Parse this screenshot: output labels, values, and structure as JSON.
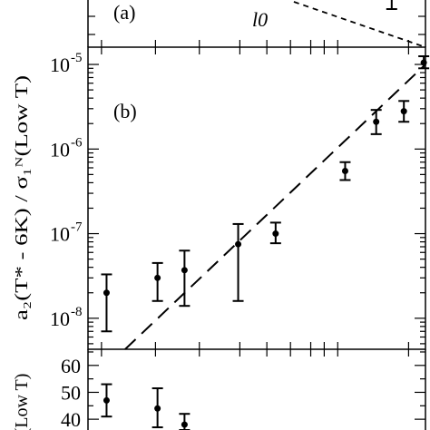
{
  "chart_data": [
    {
      "type": "line",
      "panel_label": "(a)",
      "annotation": "l0",
      "series": [
        {
          "style": "dashed",
          "x": [
            0.7,
            1.0
          ],
          "y": [
            1.0,
            0.0
          ]
        }
      ],
      "error_points": [
        {
          "x": 0.95,
          "y": 1.05
        }
      ]
    },
    {
      "type": "scatter",
      "panel_label": "(b)",
      "ylabel": "a₂(T* - 6K) / σ₁ᴺ(Low T)",
      "yscale": "log",
      "ylim": [
        4.3e-09,
        1.6e-05
      ],
      "xlim": [
        0,
        1
      ],
      "yticks": [
        {
          "value": 1e-08,
          "label": "10",
          "exp": "-8"
        },
        {
          "value": 1e-07,
          "label": "10",
          "exp": "-7"
        },
        {
          "value": 1e-06,
          "label": "10",
          "exp": "-6"
        },
        {
          "value": 1e-05,
          "label": "10",
          "exp": "-5"
        }
      ],
      "points": [
        {
          "x": 0.055,
          "y": 2e-08,
          "ylo": 7e-09,
          "yhi": 3.3e-08
        },
        {
          "x": 0.206,
          "y": 3e-08,
          "ylo": 1.6e-08,
          "yhi": 4.5e-08
        },
        {
          "x": 0.286,
          "y": 3.7e-08,
          "ylo": 1.4e-08,
          "yhi": 6.3e-08
        },
        {
          "x": 0.445,
          "y": 7.5e-08,
          "ylo": 1.6e-08,
          "yhi": 1.3e-07
        },
        {
          "x": 0.556,
          "y": 1e-07,
          "ylo": 7.7e-08,
          "yhi": 1.35e-07
        },
        {
          "x": 0.762,
          "y": 5.5e-07,
          "ylo": 4.3e-07,
          "yhi": 7e-07
        },
        {
          "x": 0.854,
          "y": 2.1e-06,
          "ylo": 1.5e-06,
          "yhi": 2.9e-06
        },
        {
          "x": 0.936,
          "y": 2.8e-06,
          "ylo": 2.1e-06,
          "yhi": 3.7e-06
        },
        {
          "x": 0.995,
          "y": 1.05e-05,
          "ylo": 9e-06,
          "yhi": 1.25e-05
        }
      ],
      "fit_line": {
        "style": "dashed",
        "x": [
          0.11,
          1.0
        ],
        "y": [
          4.3e-09,
          1e-05
        ]
      }
    },
    {
      "type": "scatter",
      "ylabel": "(Low T)",
      "ylim": [
        36,
        66
      ],
      "xlim": [
        0,
        1
      ],
      "yticks": [
        {
          "value": 40,
          "label": "40"
        },
        {
          "value": 50,
          "label": "50"
        },
        {
          "value": 60,
          "label": "60"
        }
      ],
      "points": [
        {
          "x": 0.055,
          "y": 47,
          "ylo": 41,
          "yhi": 53
        },
        {
          "x": 0.206,
          "y": 44,
          "ylo": 37,
          "yhi": 51.5
        },
        {
          "x": 0.286,
          "y": 38,
          "ylo": 36,
          "yhi": 42
        }
      ]
    }
  ]
}
